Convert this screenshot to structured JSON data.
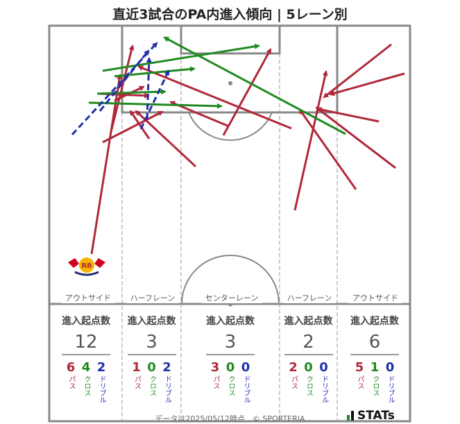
{
  "title": "直近3試合のPA内進入傾向 | 5レーン別",
  "lanes": [
    {
      "label": "アウトサイド",
      "stat_label": "進入起点数",
      "total": "12",
      "pass": "6",
      "cross": "4",
      "dribble": "2"
    },
    {
      "label": "ハーフレーン",
      "stat_label": "進入起点数",
      "total": "3",
      "pass": "1",
      "cross": "0",
      "dribble": "2"
    },
    {
      "label": "センターレーン",
      "stat_label": "進入起点数",
      "total": "3",
      "pass": "3",
      "cross": "0",
      "dribble": "0"
    },
    {
      "label": "ハーフレーン",
      "stat_label": "進入起点数",
      "total": "2",
      "pass": "2",
      "cross": "0",
      "dribble": "0"
    },
    {
      "label": "アウトサイド",
      "stat_label": "進入起点数",
      "total": "6",
      "pass": "5",
      "cross": "1",
      "dribble": "0"
    }
  ],
  "legend": {
    "pass": "パス",
    "cross": "クロス",
    "dribble": "ドリブル"
  },
  "colors": {
    "pass": "#b0283a",
    "cross": "#1f8a1f",
    "dribble": "#1f2fa8"
  },
  "team_logo_text": "RB",
  "footer": "データは2025/05/12時点　© SPORTERIA",
  "brand": "STATs"
}
